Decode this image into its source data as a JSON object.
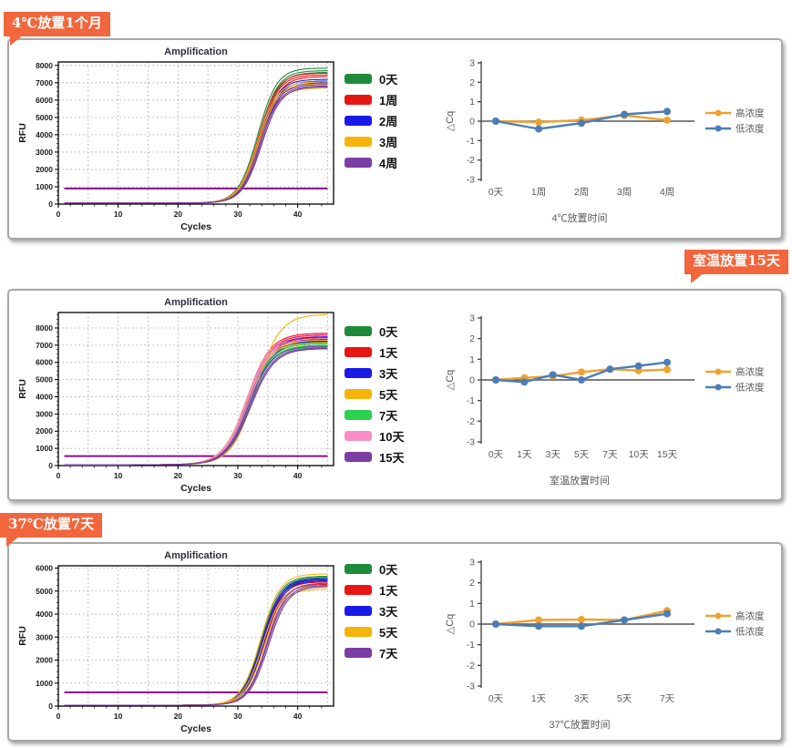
{
  "theme": {
    "bubble_color": "#f2663d",
    "bubble_text_color": "#ffffff",
    "panel_border_color": "#a7a7a7",
    "high_conc_color": "#efa22d",
    "low_conc_color": "#4d7db6"
  },
  "bubbles": [
    {
      "text": "4℃放置1个月"
    },
    {
      "text": "室温放置15天"
    },
    {
      "text": "37℃放置7天"
    }
  ],
  "chart_data": [
    {
      "id": "amp_4c",
      "type": "line",
      "role": "qpcr-amplification",
      "title": "Amplification",
      "xlabel": "Cycles",
      "ylabel": "RFU",
      "xlim": [
        0,
        46
      ],
      "x_ticks": [
        0,
        10,
        20,
        30,
        40
      ],
      "ylim": [
        0,
        8200
      ],
      "y_tick_max": 8000,
      "grid": "dotted",
      "baseline": 60,
      "k": 0.62,
      "threshold": {
        "value": 900,
        "color": "#8b0d8b"
      },
      "series": [
        {
          "name": "0天",
          "color": "#1e8b3b",
          "midpoint": 33.3,
          "plateaus": [
            7850,
            7700,
            7600
          ]
        },
        {
          "name": "1周",
          "color": "#e81515",
          "midpoint": 33.4,
          "plateaus": [
            7550,
            7450,
            7350
          ]
        },
        {
          "name": "2周",
          "color": "#1a1ae8",
          "midpoint": 33.5,
          "plateaus": [
            7200,
            7100,
            7000
          ]
        },
        {
          "name": "3周",
          "color": "#f6b40a",
          "midpoint": 33.3,
          "plateaus": [
            7060,
            6950,
            6700
          ]
        },
        {
          "name": "4周",
          "color": "#7b3fa4",
          "midpoint": 33.6,
          "plateaus": [
            6900,
            6820,
            6760
          ]
        }
      ]
    },
    {
      "id": "dcq_4c",
      "type": "line",
      "role": "stability-delta-cq",
      "ylabel": "△Cq",
      "xlabel": "4℃放置时间",
      "ylim": [
        -3,
        3
      ],
      "y_ticks": [
        3,
        2,
        1,
        0,
        -1,
        -2,
        -3
      ],
      "legend_position": "right",
      "categories": [
        "0天",
        "1周",
        "2周",
        "3周",
        "4周"
      ],
      "series": [
        {
          "name": "高浓度",
          "color": "#efa22d",
          "values": [
            0,
            -0.05,
            0.05,
            0.3,
            0.05
          ]
        },
        {
          "name": "低浓度",
          "color": "#4d7db6",
          "values": [
            0,
            -0.4,
            -0.1,
            0.35,
            0.5
          ]
        }
      ]
    },
    {
      "id": "amp_rt",
      "type": "line",
      "role": "qpcr-amplification",
      "title": "Amplification",
      "xlabel": "Cycles",
      "ylabel": "RFU",
      "xlim": [
        0,
        46
      ],
      "x_ticks": [
        0,
        10,
        20,
        30,
        40
      ],
      "ylim": [
        0,
        8900
      ],
      "y_tick_max": 8000,
      "grid": "dotted",
      "baseline": 50,
      "k": 0.5,
      "threshold": {
        "value": 550,
        "color": "#8b0d8b"
      },
      "series": [
        {
          "name": "0天",
          "color": "#1e8b3b",
          "midpoint": 31.4,
          "plateaus": [
            7200,
            7100,
            7000
          ]
        },
        {
          "name": "1天",
          "color": "#e81515",
          "midpoint": 31.5,
          "plateaus": [
            7700,
            7600,
            7450
          ]
        },
        {
          "name": "3天",
          "color": "#1a1ae8",
          "midpoint": 31.6,
          "plateaus": [
            7500,
            7350,
            7250
          ]
        },
        {
          "name": "5天",
          "color": "#f6b40a",
          "midpoints": [
            33,
            31.5,
            31.3
          ],
          "plateaus": [
            8800,
            7300,
            7150
          ]
        },
        {
          "name": "7天",
          "color": "#2bd14e",
          "midpoint": 31.7,
          "plateaus": [
            7100,
            7000,
            6900
          ]
        },
        {
          "name": "10天",
          "color": "#f98cc4",
          "midpoint": 31.5,
          "plateaus": [
            7650,
            7550,
            7400
          ]
        },
        {
          "name": "15天",
          "color": "#7b3fa4",
          "midpoint": 31.8,
          "plateaus": [
            6950,
            6850,
            6800
          ]
        }
      ]
    },
    {
      "id": "dcq_rt",
      "type": "line",
      "role": "stability-delta-cq",
      "ylabel": "△Cq",
      "xlabel": "室温放置时间",
      "ylim": [
        -3,
        3
      ],
      "y_ticks": [
        3,
        2,
        1,
        0,
        -1,
        -2,
        -3
      ],
      "legend_position": "right",
      "categories": [
        "0天",
        "1天",
        "3天",
        "5天",
        "7天",
        "10天",
        "15天"
      ],
      "series": [
        {
          "name": "高浓度",
          "color": "#efa22d",
          "values": [
            0,
            0.1,
            0.18,
            0.38,
            0.52,
            0.45,
            0.5
          ]
        },
        {
          "name": "低浓度",
          "color": "#4d7db6",
          "values": [
            0,
            -0.1,
            0.25,
            0,
            0.52,
            0.68,
            0.85
          ]
        }
      ]
    },
    {
      "id": "amp_37",
      "type": "line",
      "role": "qpcr-amplification",
      "title": "Amplification",
      "xlabel": "Cycles",
      "ylabel": "RFU",
      "xlim": [
        0,
        46
      ],
      "x_ticks": [
        0,
        10,
        20,
        30,
        40
      ],
      "ylim": [
        0,
        6100
      ],
      "y_tick_max": 6000,
      "grid": "dotted",
      "baseline": 40,
      "k": 0.62,
      "threshold": {
        "value": 600,
        "color": "#8b0d8b"
      },
      "series": [
        {
          "name": "0天",
          "color": "#1e8b3b",
          "midpoint": 33.9,
          "plateaus": [
            5650,
            5600,
            5550
          ]
        },
        {
          "name": "1天",
          "color": "#e81515",
          "midpoint": 34.0,
          "plateaus": [
            5450,
            5400,
            5300
          ]
        },
        {
          "name": "3天",
          "color": "#1a1ae8",
          "midpoint": 34.0,
          "plateaus": [
            5550,
            5500,
            5450
          ]
        },
        {
          "name": "5天",
          "color": "#f6b40a",
          "midpoints": [
            33.8,
            34.1,
            34.4
          ],
          "plateaus": [
            5750,
            5250,
            5100
          ]
        },
        {
          "name": "7天",
          "color": "#7b3fa4",
          "midpoints": [
            34.8,
            34.9,
            35.1
          ],
          "plateaus": [
            5350,
            5250,
            5200
          ]
        }
      ]
    },
    {
      "id": "dcq_37",
      "type": "line",
      "role": "stability-delta-cq",
      "ylabel": "△Cq",
      "xlabel": "37℃放置时间",
      "ylim": [
        -3,
        3
      ],
      "y_ticks": [
        3,
        2,
        1,
        0,
        -1,
        -2,
        -3
      ],
      "legend_position": "right",
      "categories": [
        "0天",
        "1天",
        "3天",
        "5天",
        "7天"
      ],
      "series": [
        {
          "name": "高浓度",
          "color": "#efa22d",
          "values": [
            0,
            0.2,
            0.22,
            0.2,
            0.65
          ]
        },
        {
          "name": "低浓度",
          "color": "#4d7db6",
          "values": [
            0,
            -0.1,
            -0.1,
            0.2,
            0.5
          ]
        }
      ]
    }
  ]
}
